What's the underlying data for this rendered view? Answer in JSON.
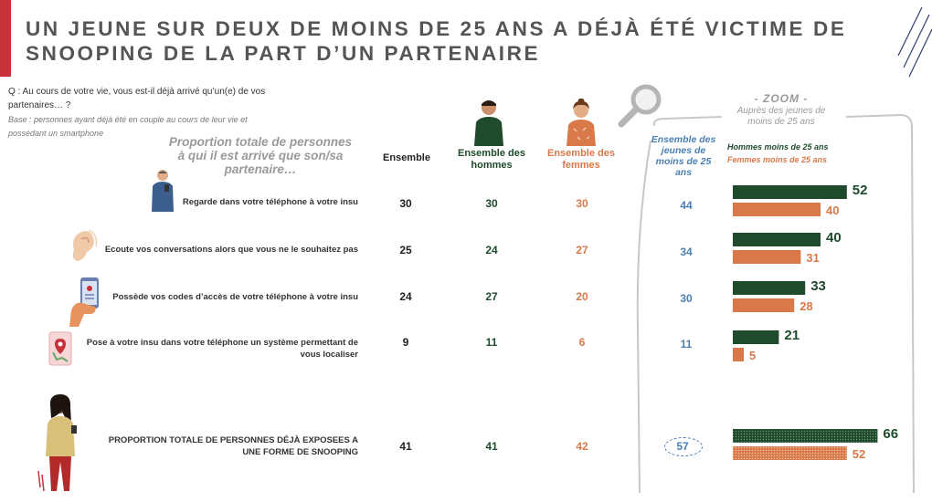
{
  "title": {
    "line1": "UN JEUNE SUR DEUX DE MOINS DE 25 ANS A DÉJÀ ÉTÉ VICTIME DE",
    "line2": "SNOOPING DE LA PART D’UN PARTENAIRE"
  },
  "question": "Q : Au cours de votre vie, vous est-il déjà arrivé qu’un(e) de vos partenaires… ?",
  "base": "Base : personnes ayant déjà été en couple au cours de leur vie et possédant un smartphone",
  "proportion_label": "Proportion totale de personnes à qui il est arrivé que son/sa partenaire…",
  "columns": {
    "ensemble": "Ensemble",
    "hommes": "Ensemble des hommes",
    "femmes": "Ensemble des femmes",
    "jeunes": "Ensemble des jeunes de moins de 25 ans"
  },
  "zoom": {
    "title": "- ZOOM -",
    "subtitle": "Auprès des jeunes de moins de 25 ans",
    "legend_hommes": "Hommes moins de 25 ans",
    "legend_femmes": "Femmes moins de 25 ans"
  },
  "colors": {
    "hommes": "#1f4a2c",
    "femmes": "#d9794a",
    "jeunes": "#4a7fb3",
    "accent": "#c8323a"
  },
  "rows": [
    {
      "label": "Regarde dans votre téléphone à votre insu",
      "ensemble": "30",
      "hommes": "30",
      "femmes": "30",
      "jeunes": "44",
      "icon": "man-phone-icon"
    },
    {
      "label": "Ecoute vos conversations alors que vous ne le souhaitez pas",
      "ensemble": "25",
      "hommes": "24",
      "femmes": "27",
      "jeunes": "34",
      "icon": "ear-icon"
    },
    {
      "label": "Possède vos codes d’accès de votre téléphone à votre insu",
      "ensemble": "24",
      "hommes": "27",
      "femmes": "20",
      "jeunes": "30",
      "icon": "phone-in-hand-icon"
    },
    {
      "label": "Pose à votre insu dans votre téléphone un système permettant de vous localiser",
      "ensemble": "9",
      "hommes": "11",
      "femmes": "6",
      "jeunes": "11",
      "icon": "location-phone-icon"
    },
    {
      "label": "PROPORTION TOTALE DE PERSONNES DÉJÀ EXPOSEES A UNE FORME DE SNOOPING",
      "ensemble": "41",
      "hommes": "41",
      "femmes": "42",
      "jeunes": "57",
      "icon": "woman-phone-icon"
    }
  ],
  "chart_data": {
    "type": "bar",
    "orientation": "horizontal",
    "categories": [
      "Regarde dans votre téléphone à votre insu",
      "Ecoute vos conversations alors que vous ne le souhaitez pas",
      "Possède vos codes d’accès de votre téléphone à votre insu",
      "Pose à votre insu dans votre téléphone un système permettant de vous localiser",
      "PROPORTION TOTALE DE PERSONNES DÉJÀ EXPOSEES A UNE FORME DE SNOOPING"
    ],
    "series": [
      {
        "name": "Hommes moins de 25 ans",
        "values": [
          52,
          40,
          33,
          21,
          66
        ],
        "color": "#1f4a2c"
      },
      {
        "name": "Femmes moins de 25 ans",
        "values": [
          40,
          31,
          28,
          5,
          52
        ],
        "color": "#d9794a"
      }
    ],
    "xlim": [
      0,
      100
    ],
    "grid": false,
    "legend": "top"
  }
}
